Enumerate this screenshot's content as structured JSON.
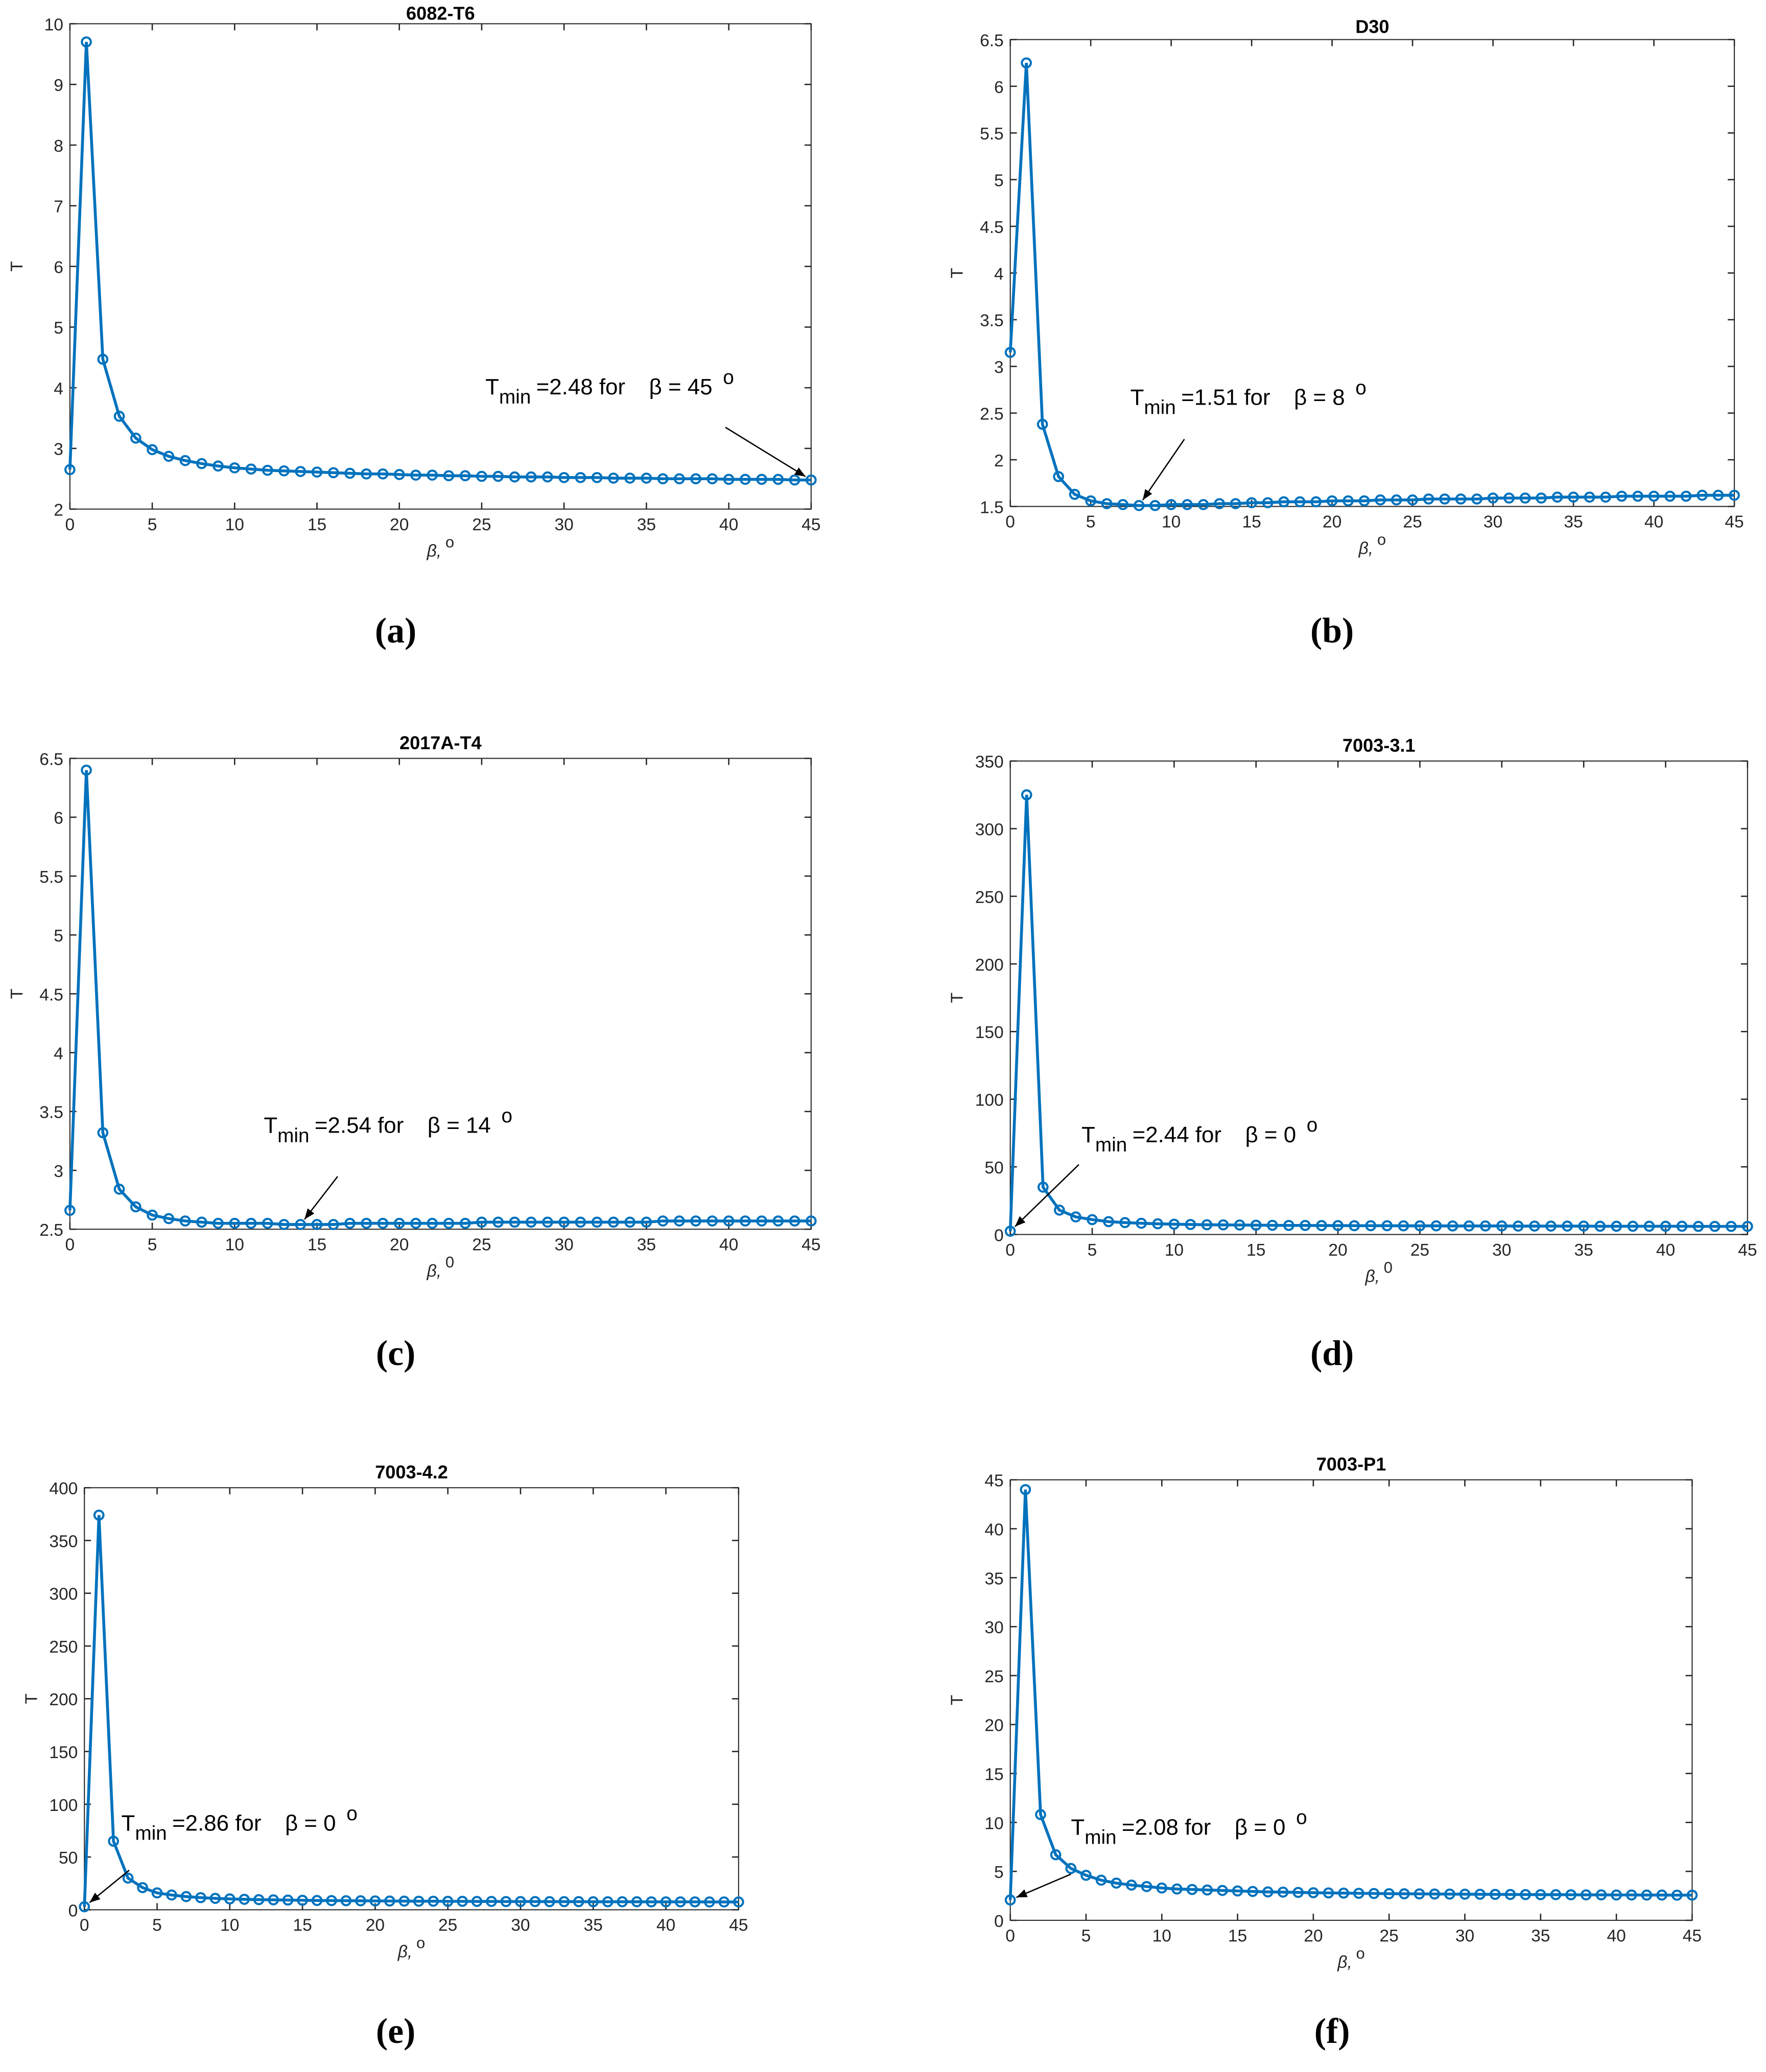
{
  "chart_data": [
    {
      "type": "line",
      "title": "6082-T6",
      "ylabel": "T",
      "xlabel": "β,",
      "xlabel_sup": "o",
      "caption": "(a)",
      "color": "#0072bd",
      "xlim": [
        0,
        45
      ],
      "xticks": [
        0,
        5,
        10,
        15,
        20,
        25,
        30,
        35,
        40,
        45
      ],
      "ylim": [
        2,
        10
      ],
      "yticks": [
        2,
        3,
        4,
        5,
        6,
        7,
        8,
        9,
        10
      ],
      "x": [
        0,
        1,
        2,
        3,
        4,
        5,
        6,
        7,
        8,
        9,
        10,
        11,
        12,
        13,
        14,
        15,
        16,
        17,
        18,
        19,
        20,
        21,
        22,
        23,
        24,
        25,
        26,
        27,
        28,
        29,
        30,
        31,
        32,
        33,
        34,
        35,
        36,
        37,
        38,
        39,
        40,
        41,
        42,
        43,
        44,
        45
      ],
      "values": [
        2.65,
        9.7,
        4.47,
        3.53,
        3.17,
        2.98,
        2.87,
        2.8,
        2.75,
        2.71,
        2.68,
        2.66,
        2.64,
        2.63,
        2.62,
        2.61,
        2.6,
        2.59,
        2.58,
        2.58,
        2.57,
        2.56,
        2.56,
        2.55,
        2.55,
        2.54,
        2.54,
        2.53,
        2.53,
        2.53,
        2.52,
        2.52,
        2.52,
        2.51,
        2.51,
        2.51,
        2.5,
        2.5,
        2.5,
        2.5,
        2.49,
        2.49,
        2.49,
        2.49,
        2.48,
        2.48
      ],
      "annotation": {
        "T": "T",
        "sub": "min",
        "text": "=2.48 for",
        "beta": "β = 45",
        "sup": "o",
        "x": 45,
        "y": 2.48
      }
    },
    {
      "type": "line",
      "title": "D30",
      "ylabel": "T",
      "xlabel": "β,",
      "xlabel_sup": "o",
      "caption": "(b)",
      "color": "#0072bd",
      "xlim": [
        0,
        45
      ],
      "xticks": [
        0,
        5,
        10,
        15,
        20,
        25,
        30,
        35,
        40,
        45
      ],
      "ylim": [
        1.5,
        6.5
      ],
      "yticks": [
        1.5,
        2,
        2.5,
        3,
        3.5,
        4,
        4.5,
        5,
        5.5,
        6,
        6.5
      ],
      "x": [
        0,
        1,
        2,
        3,
        4,
        5,
        6,
        7,
        8,
        9,
        10,
        11,
        12,
        13,
        14,
        15,
        16,
        17,
        18,
        19,
        20,
        21,
        22,
        23,
        24,
        25,
        26,
        27,
        28,
        29,
        30,
        31,
        32,
        33,
        34,
        35,
        36,
        37,
        38,
        39,
        40,
        41,
        42,
        43,
        44,
        45
      ],
      "values": [
        3.15,
        6.25,
        2.38,
        1.82,
        1.63,
        1.56,
        1.53,
        1.52,
        1.51,
        1.51,
        1.52,
        1.52,
        1.52,
        1.53,
        1.53,
        1.54,
        1.54,
        1.55,
        1.55,
        1.55,
        1.56,
        1.56,
        1.56,
        1.57,
        1.57,
        1.57,
        1.58,
        1.58,
        1.58,
        1.58,
        1.59,
        1.59,
        1.59,
        1.59,
        1.6,
        1.6,
        1.6,
        1.6,
        1.61,
        1.61,
        1.61,
        1.61,
        1.61,
        1.62,
        1.62,
        1.62
      ],
      "annotation": {
        "T": "T",
        "sub": "min",
        "text": "=1.51 for",
        "beta": "β = 8",
        "sup": "o",
        "x": 8,
        "y": 1.51
      }
    },
    {
      "type": "line",
      "title": "2017A-T4",
      "ylabel": "T",
      "xlabel": "β,",
      "xlabel_sup": "0",
      "caption": "(c)",
      "color": "#0072bd",
      "xlim": [
        0,
        45
      ],
      "xticks": [
        0,
        5,
        10,
        15,
        20,
        25,
        30,
        35,
        40,
        45
      ],
      "ylim": [
        2.5,
        6.5
      ],
      "yticks": [
        2.5,
        3,
        3.5,
        4,
        4.5,
        5,
        5.5,
        6,
        6.5
      ],
      "x": [
        0,
        1,
        2,
        3,
        4,
        5,
        6,
        7,
        8,
        9,
        10,
        11,
        12,
        13,
        14,
        15,
        16,
        17,
        18,
        19,
        20,
        21,
        22,
        23,
        24,
        25,
        26,
        27,
        28,
        29,
        30,
        31,
        32,
        33,
        34,
        35,
        36,
        37,
        38,
        39,
        40,
        41,
        42,
        43,
        44,
        45
      ],
      "values": [
        2.66,
        6.4,
        3.32,
        2.84,
        2.69,
        2.62,
        2.59,
        2.57,
        2.56,
        2.55,
        2.55,
        2.55,
        2.55,
        2.54,
        2.54,
        2.54,
        2.54,
        2.55,
        2.55,
        2.55,
        2.55,
        2.55,
        2.55,
        2.55,
        2.55,
        2.56,
        2.56,
        2.56,
        2.56,
        2.56,
        2.56,
        2.56,
        2.56,
        2.56,
        2.56,
        2.56,
        2.57,
        2.57,
        2.57,
        2.57,
        2.57,
        2.57,
        2.57,
        2.57,
        2.57,
        2.57
      ],
      "annotation": {
        "T": "T",
        "sub": "min",
        "text": "=2.54 for",
        "beta": "β = 14",
        "sup": "o",
        "x": 14,
        "y": 2.54
      }
    },
    {
      "type": "line",
      "title": "7003-3.1",
      "ylabel": "T",
      "xlabel": "β,",
      "xlabel_sup": "0",
      "caption": "(d)",
      "color": "#0072bd",
      "xlim": [
        0,
        45
      ],
      "xticks": [
        0,
        5,
        10,
        15,
        20,
        25,
        30,
        35,
        40,
        45
      ],
      "ylim": [
        0,
        350
      ],
      "yticks": [
        0,
        50,
        100,
        150,
        200,
        250,
        300,
        350
      ],
      "x": [
        0,
        1,
        2,
        3,
        4,
        5,
        6,
        7,
        8,
        9,
        10,
        11,
        12,
        13,
        14,
        15,
        16,
        17,
        18,
        19,
        20,
        21,
        22,
        23,
        24,
        25,
        26,
        27,
        28,
        29,
        30,
        31,
        32,
        33,
        34,
        35,
        36,
        37,
        38,
        39,
        40,
        41,
        42,
        43,
        44,
        45
      ],
      "values": [
        2.44,
        325,
        35,
        18,
        13,
        11,
        9.5,
        8.8,
        8.3,
        7.9,
        7.6,
        7.4,
        7.2,
        7.1,
        7,
        6.9,
        6.8,
        6.7,
        6.7,
        6.6,
        6.6,
        6.5,
        6.5,
        6.5,
        6.4,
        6.4,
        6.4,
        6.3,
        6.3,
        6.3,
        6.3,
        6.2,
        6.2,
        6.2,
        6.2,
        6.2,
        6.1,
        6.1,
        6.1,
        6.1,
        6.1,
        6.1,
        6,
        6,
        6,
        6
      ],
      "annotation": {
        "T": "T",
        "sub": "min",
        "text": "=2.44 for",
        "beta": "β = 0",
        "sup": "o",
        "x": 0,
        "y": 2.44
      }
    },
    {
      "type": "line",
      "title": "7003-4.2",
      "ylabel": "T",
      "xlabel": "β,",
      "xlabel_sup": "o",
      "caption": "(e)",
      "color": "#0072bd",
      "xlim": [
        0,
        45
      ],
      "xticks": [
        0,
        5,
        10,
        15,
        20,
        25,
        30,
        35,
        40,
        45
      ],
      "ylim": [
        0,
        400
      ],
      "yticks": [
        0,
        50,
        100,
        150,
        200,
        250,
        300,
        350,
        400
      ],
      "x": [
        0,
        1,
        2,
        3,
        4,
        5,
        6,
        7,
        8,
        9,
        10,
        11,
        12,
        13,
        14,
        15,
        16,
        17,
        18,
        19,
        20,
        21,
        22,
        23,
        24,
        25,
        26,
        27,
        28,
        29,
        30,
        31,
        32,
        33,
        34,
        35,
        36,
        37,
        38,
        39,
        40,
        41,
        42,
        43,
        44,
        45
      ],
      "values": [
        2.86,
        374,
        65,
        30,
        21,
        16,
        14,
        12.5,
        11.5,
        10.8,
        10.3,
        9.9,
        9.6,
        9.4,
        9.2,
        9,
        8.8,
        8.7,
        8.6,
        8.5,
        8.4,
        8.3,
        8.2,
        8.1,
        8.1,
        8,
        8,
        7.9,
        7.9,
        7.8,
        7.8,
        7.8,
        7.7,
        7.7,
        7.7,
        7.6,
        7.6,
        7.6,
        7.6,
        7.5,
        7.5,
        7.5,
        7.5,
        7.4,
        7.4,
        7.4
      ],
      "annotation": {
        "T": "T",
        "sub": "min",
        "text": "=2.86 for",
        "beta": "β = 0",
        "sup": "o",
        "x": 0,
        "y": 2.86
      }
    },
    {
      "type": "line",
      "title": "7003-P1",
      "ylabel": "T",
      "xlabel": "β,",
      "xlabel_sup": "o",
      "caption": "(f)",
      "color": "#0072bd",
      "xlim": [
        0,
        45
      ],
      "xticks": [
        0,
        5,
        10,
        15,
        20,
        25,
        30,
        35,
        40,
        45
      ],
      "ylim": [
        0,
        45
      ],
      "yticks": [
        0,
        5,
        10,
        15,
        20,
        25,
        30,
        35,
        40,
        45
      ],
      "x": [
        0,
        1,
        2,
        3,
        4,
        5,
        6,
        7,
        8,
        9,
        10,
        11,
        12,
        13,
        14,
        15,
        16,
        17,
        18,
        19,
        20,
        21,
        22,
        23,
        24,
        25,
        26,
        27,
        28,
        29,
        30,
        31,
        32,
        33,
        34,
        35,
        36,
        37,
        38,
        39,
        40,
        41,
        42,
        43,
        44,
        45
      ],
      "values": [
        2.08,
        44,
        10.8,
        6.7,
        5.3,
        4.6,
        4.1,
        3.8,
        3.6,
        3.45,
        3.3,
        3.2,
        3.15,
        3.1,
        3.05,
        3,
        2.95,
        2.9,
        2.88,
        2.85,
        2.82,
        2.8,
        2.78,
        2.76,
        2.74,
        2.72,
        2.71,
        2.7,
        2.69,
        2.68,
        2.67,
        2.66,
        2.65,
        2.64,
        2.63,
        2.62,
        2.62,
        2.61,
        2.6,
        2.6,
        2.59,
        2.59,
        2.58,
        2.58,
        2.57,
        2.57
      ],
      "annotation": {
        "T": "T",
        "sub": "min",
        "text": "=2.08 for",
        "beta": "β = 0",
        "sup": "o",
        "x": 0,
        "y": 2.08
      }
    }
  ]
}
